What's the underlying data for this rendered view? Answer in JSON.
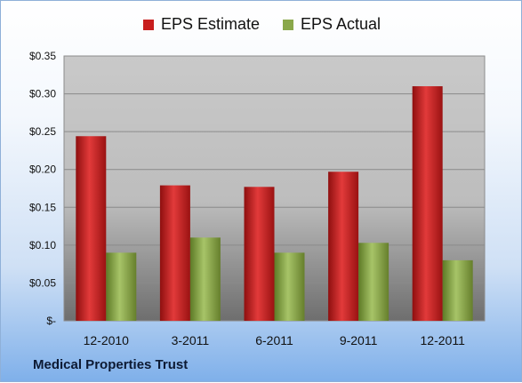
{
  "legend": {
    "estimate_label": "EPS Estimate",
    "actual_label": "EPS Actual"
  },
  "company": "Medical Properties Trust",
  "colors": {
    "estimate": "#c81e1e",
    "actual": "#8aa84a"
  },
  "chart_data": {
    "type": "bar",
    "categories": [
      "12-2010",
      "3-2011",
      "6-2011",
      "9-2011",
      "12-2011"
    ],
    "series": [
      {
        "name": "EPS Estimate",
        "values": [
          0.244,
          0.179,
          0.177,
          0.197,
          0.31
        ]
      },
      {
        "name": "EPS Actual",
        "values": [
          0.09,
          0.11,
          0.09,
          0.103,
          0.08
        ]
      }
    ],
    "yticks": [
      {
        "value": 0.35,
        "label": "$0.35"
      },
      {
        "value": 0.3,
        "label": "$0.30"
      },
      {
        "value": 0.25,
        "label": "$0.25"
      },
      {
        "value": 0.2,
        "label": "$0.20"
      },
      {
        "value": 0.15,
        "label": "$0.15"
      },
      {
        "value": 0.1,
        "label": "$0.10"
      },
      {
        "value": 0.05,
        "label": "$0.05"
      },
      {
        "value": 0.0,
        "label": "$-"
      }
    ],
    "ylim": [
      0,
      0.35
    ],
    "grid": true,
    "legend_position": "top"
  }
}
